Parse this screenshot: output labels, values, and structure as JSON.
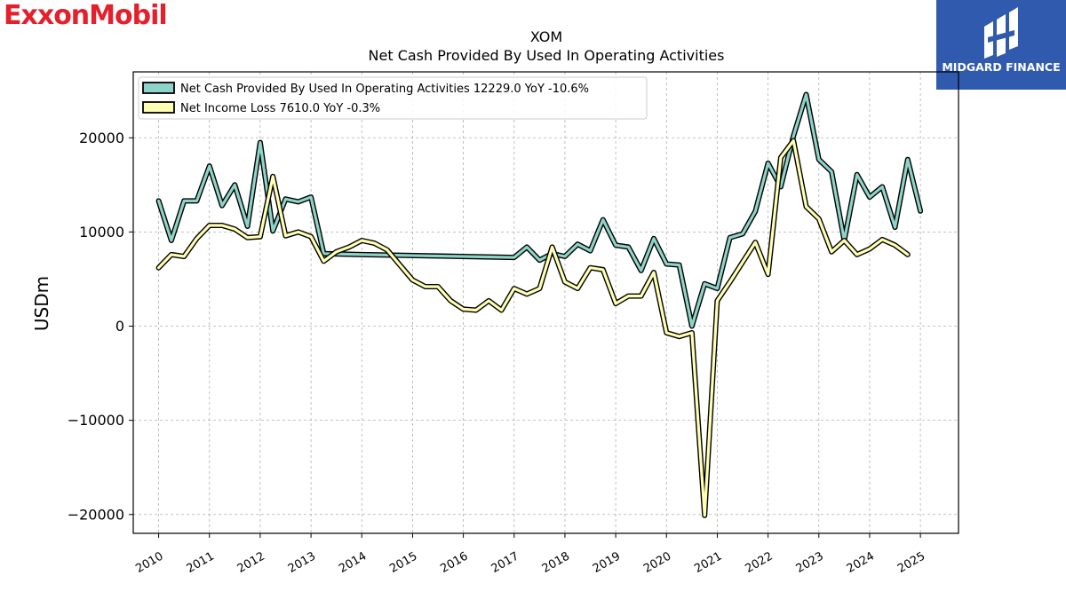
{
  "branding": {
    "left_logo_text": "ExxonMobil",
    "right_logo_text": "MIDGARD FINANCE"
  },
  "chart_data": {
    "type": "line",
    "title": "XOM",
    "subtitle": "Net Cash Provided By Used In Operating Activities",
    "xlabel": "",
    "ylabel": "USDm",
    "ylim": [
      -22000,
      27000
    ],
    "xlim": [
      2009.5,
      2025.75
    ],
    "yticks": [
      -20000,
      -10000,
      0,
      10000,
      20000
    ],
    "ytick_labels": [
      "−20000",
      "−10000",
      "0",
      "10000",
      "20000"
    ],
    "xticks": [
      2010,
      2011,
      2012,
      2013,
      2014,
      2015,
      2016,
      2017,
      2018,
      2019,
      2020,
      2021,
      2022,
      2023,
      2024,
      2025
    ],
    "xtick_labels": [
      "2010",
      "2011",
      "2012",
      "2013",
      "2014",
      "2015",
      "2016",
      "2017",
      "2018",
      "2019",
      "2020",
      "2021",
      "2022",
      "2023",
      "2024",
      "2025"
    ],
    "grid": true,
    "legend_position": "top-left",
    "series": [
      {
        "name": "Net Cash Provided By Used In Operating Activities",
        "legend": "Net Cash Provided By Used In Operating Activities  12229.0 YoY -10.6%",
        "color": "#8dd3c7",
        "points": [
          [
            2010.0,
            13300
          ],
          [
            2010.25,
            9100
          ],
          [
            2010.5,
            13300
          ],
          [
            2010.75,
            13300
          ],
          [
            2011.0,
            17000
          ],
          [
            2011.25,
            12800
          ],
          [
            2011.5,
            15000
          ],
          [
            2011.75,
            10600
          ],
          [
            2012.0,
            19500
          ],
          [
            2012.25,
            10100
          ],
          [
            2012.5,
            13500
          ],
          [
            2012.75,
            13200
          ],
          [
            2013.0,
            13700
          ],
          [
            2013.25,
            7700
          ],
          [
            2014.0,
            7600
          ],
          [
            2017.0,
            7300
          ],
          [
            2017.25,
            8400
          ],
          [
            2017.5,
            7000
          ],
          [
            2017.75,
            7700
          ],
          [
            2018.0,
            7400
          ],
          [
            2018.25,
            8700
          ],
          [
            2018.5,
            8000
          ],
          [
            2018.75,
            11300
          ],
          [
            2019.0,
            8600
          ],
          [
            2019.25,
            8400
          ],
          [
            2019.5,
            5900
          ],
          [
            2019.75,
            9300
          ],
          [
            2020.0,
            6600
          ],
          [
            2020.25,
            6500
          ],
          [
            2020.5,
            0
          ],
          [
            2020.75,
            4500
          ],
          [
            2021.0,
            4000
          ],
          [
            2021.25,
            9400
          ],
          [
            2021.5,
            9800
          ],
          [
            2021.75,
            12200
          ],
          [
            2022.0,
            17300
          ],
          [
            2022.25,
            14800
          ],
          [
            2022.5,
            20200
          ],
          [
            2022.75,
            24600
          ],
          [
            2023.0,
            17700
          ],
          [
            2023.25,
            16400
          ],
          [
            2023.5,
            9100
          ],
          [
            2023.75,
            16100
          ],
          [
            2024.0,
            13700
          ],
          [
            2024.25,
            14800
          ],
          [
            2024.5,
            10500
          ],
          [
            2024.75,
            17700
          ],
          [
            2025.0,
            12229
          ]
        ]
      },
      {
        "name": "Net Income Loss",
        "legend": "Net Income Loss  7610.0 YoY -0.3%",
        "color": "#ffffb3",
        "points": [
          [
            2010.0,
            6200
          ],
          [
            2010.25,
            7600
          ],
          [
            2010.5,
            7400
          ],
          [
            2010.75,
            9300
          ],
          [
            2011.0,
            10700
          ],
          [
            2011.25,
            10700
          ],
          [
            2011.5,
            10300
          ],
          [
            2011.75,
            9400
          ],
          [
            2012.0,
            9500
          ],
          [
            2012.25,
            15900
          ],
          [
            2012.5,
            9600
          ],
          [
            2012.75,
            10000
          ],
          [
            2013.0,
            9500
          ],
          [
            2013.25,
            6900
          ],
          [
            2013.5,
            7900
          ],
          [
            2013.75,
            8400
          ],
          [
            2014.0,
            9100
          ],
          [
            2014.25,
            8800
          ],
          [
            2014.5,
            8100
          ],
          [
            2014.75,
            6500
          ],
          [
            2015.0,
            4900
          ],
          [
            2015.25,
            4200
          ],
          [
            2015.5,
            4200
          ],
          [
            2015.75,
            2700
          ],
          [
            2016.0,
            1800
          ],
          [
            2016.25,
            1700
          ],
          [
            2016.5,
            2700
          ],
          [
            2016.75,
            1700
          ],
          [
            2017.0,
            4000
          ],
          [
            2017.25,
            3400
          ],
          [
            2017.5,
            4000
          ],
          [
            2017.75,
            8400
          ],
          [
            2018.0,
            4700
          ],
          [
            2018.25,
            4000
          ],
          [
            2018.5,
            6200
          ],
          [
            2018.75,
            6000
          ],
          [
            2019.0,
            2400
          ],
          [
            2019.25,
            3200
          ],
          [
            2019.5,
            3200
          ],
          [
            2019.75,
            5700
          ],
          [
            2020.0,
            -700
          ],
          [
            2020.25,
            -1100
          ],
          [
            2020.5,
            -700
          ],
          [
            2020.75,
            -20100
          ],
          [
            2021.0,
            2700
          ],
          [
            2021.25,
            4700
          ],
          [
            2021.5,
            6800
          ],
          [
            2021.75,
            8900
          ],
          [
            2022.0,
            5500
          ],
          [
            2022.25,
            17900
          ],
          [
            2022.5,
            19700
          ],
          [
            2022.75,
            12700
          ],
          [
            2023.0,
            11400
          ],
          [
            2023.25,
            7900
          ],
          [
            2023.5,
            9100
          ],
          [
            2023.75,
            7600
          ],
          [
            2024.0,
            8200
          ],
          [
            2024.25,
            9200
          ],
          [
            2024.5,
            8600
          ],
          [
            2024.75,
            7610
          ]
        ]
      }
    ]
  }
}
